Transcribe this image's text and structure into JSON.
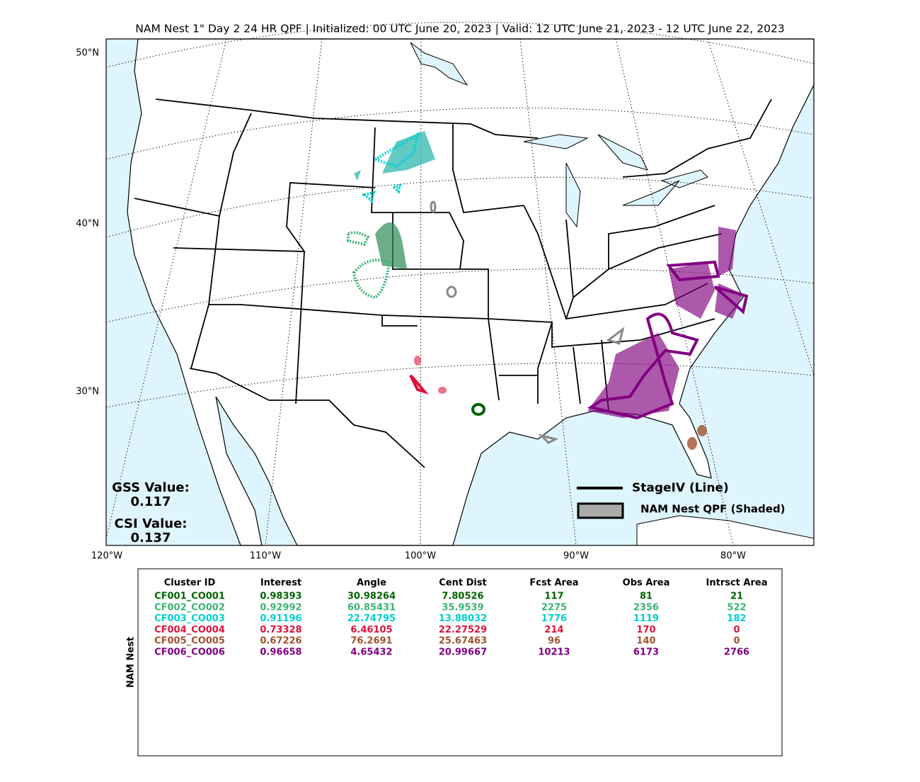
{
  "title": "NAM Nest 1\" Day 2 24 HR QPF | Initialized: 00 UTC June 20, 2023 | Valid: 12 UTC June 21, 2023 - 12 UTC June 22, 2023",
  "map": {
    "lat_labels": [
      "50°N",
      "40°N",
      "30°N"
    ],
    "lon_labels": [
      "120°W",
      "110°W",
      "100°W",
      "90°W",
      "80°W"
    ],
    "legend": [
      "StageIV (Line)",
      "NAM Nest QPF (Shaded)"
    ],
    "scores": [
      {
        "label": "GSS Value:",
        "value": 0.117
      },
      {
        "label": "CSI Value:",
        "value": 0.137
      }
    ]
  },
  "table": {
    "side_label": "NAM Nest",
    "columns": [
      "Cluster ID",
      "Interest",
      "Angle",
      "Cent Dist",
      "Fcst Area",
      "Obs Area",
      "Intrsct Area"
    ],
    "rows": [
      {
        "color": "#006400",
        "cells": [
          "CF001_CO001",
          0.98393,
          30.98264,
          7.80526,
          117,
          81,
          21
        ]
      },
      {
        "color": "#3cb371",
        "cells": [
          "CF002_CO002",
          0.92992,
          60.85431,
          35.9539,
          2275,
          2356,
          522
        ]
      },
      {
        "color": "#00ced1",
        "cells": [
          "CF003_CO003",
          0.91196,
          22.74795,
          13.88032,
          1776,
          1119,
          182
        ]
      },
      {
        "color": "#dc143c",
        "cells": [
          "CF004_CO004",
          0.73328,
          6.46105,
          22.27529,
          214,
          170,
          0
        ]
      },
      {
        "color": "#a0522d",
        "cells": [
          "CF005_CO005",
          0.67226,
          76.2691,
          25.67463,
          96,
          140,
          0
        ]
      },
      {
        "color": "#800080",
        "cells": [
          "CF006_CO006",
          0.96658,
          4.65432,
          20.99667,
          10213,
          6173,
          2766
        ]
      }
    ]
  }
}
